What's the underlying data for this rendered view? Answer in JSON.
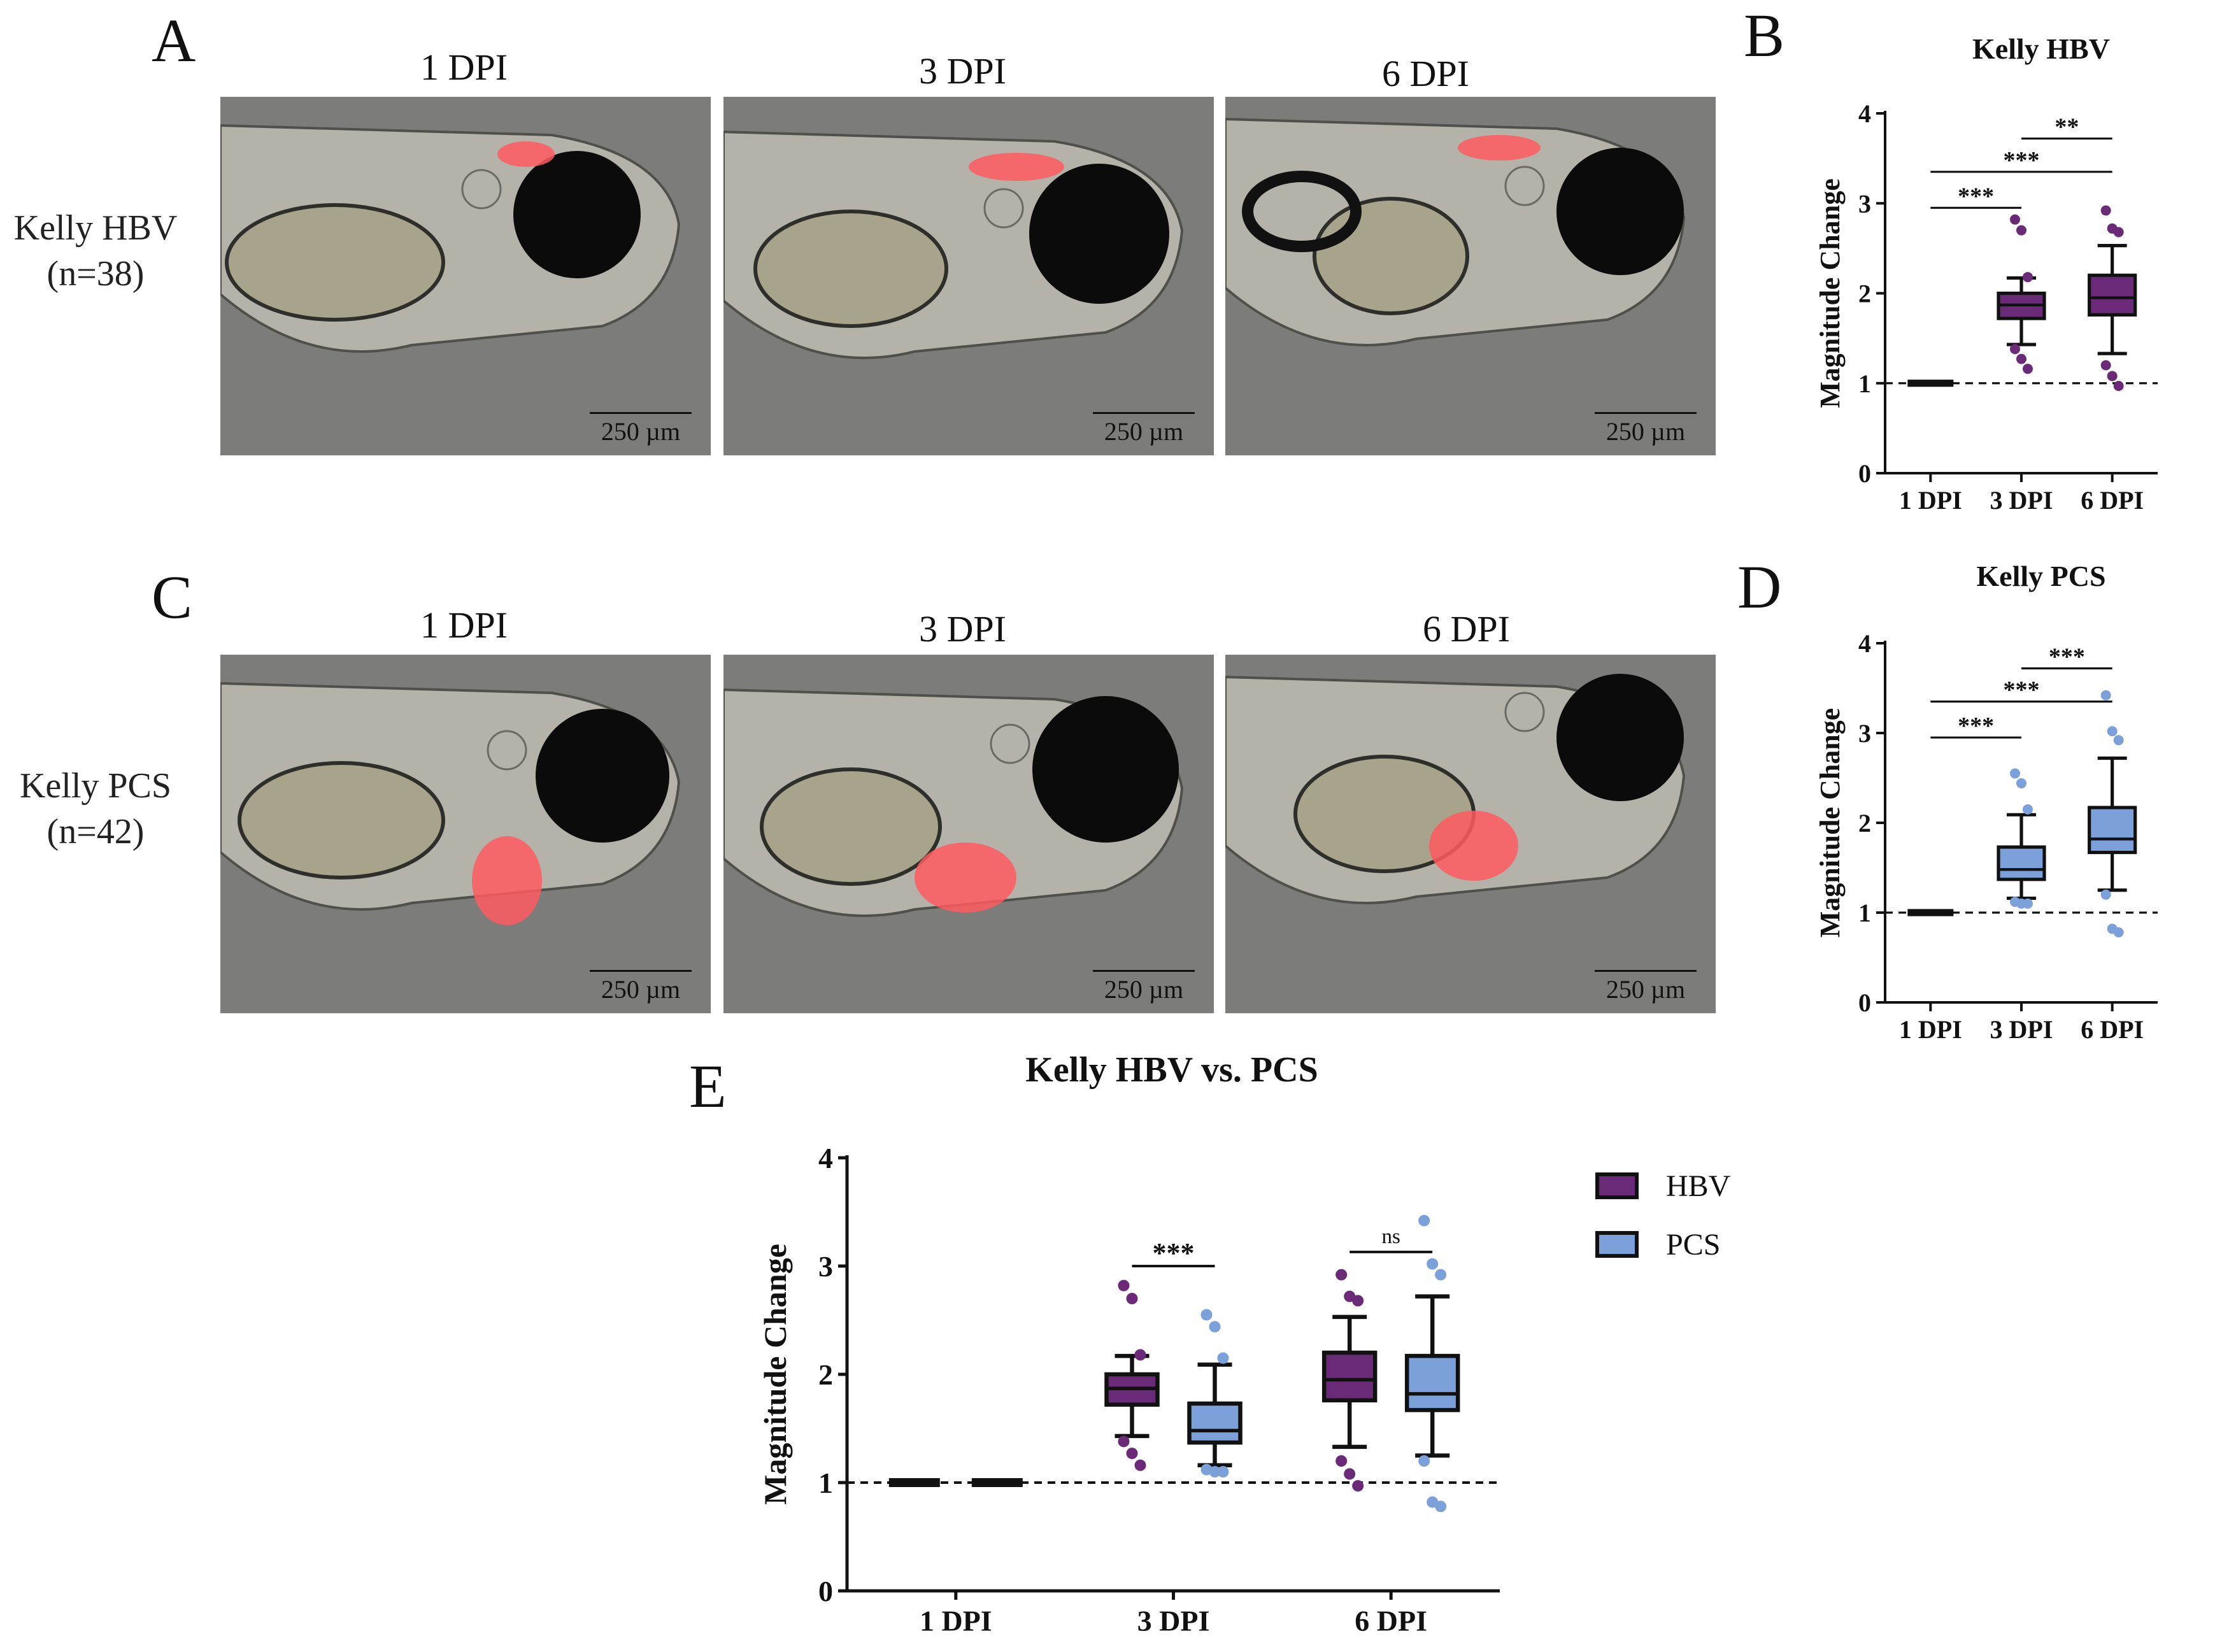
{
  "panels": {
    "A": {
      "letter": "A",
      "columns": [
        "1 DPI",
        "3 DPI",
        "6 DPI"
      ],
      "row_label": "Kelly HBV",
      "row_n": "(n=38)",
      "scale_label": "250 µm"
    },
    "C": {
      "letter": "C",
      "columns": [
        "1 DPI",
        "3 DPI",
        "6 DPI"
      ],
      "row_label": "Kelly PCS",
      "row_n": "(n=42)",
      "scale_label": "250 µm"
    },
    "B": {
      "letter": "B"
    },
    "D": {
      "letter": "D"
    },
    "E": {
      "letter": "E"
    }
  },
  "colors": {
    "hbv": "#6a2a78",
    "pcs": "#7ba0da",
    "tumor": "#ff5a60",
    "fish_body": "#b9b7ad",
    "eye": "#0b0b0b",
    "background": "#7c7d7b"
  },
  "chart_data": [
    {
      "id": "B",
      "type": "box",
      "title": "Kelly HBV",
      "xlabel": "",
      "ylabel": "Magnitude Change",
      "ylim": [
        0,
        4
      ],
      "yticks": [
        "0",
        "1",
        "2",
        "3",
        "4"
      ],
      "categories": [
        "1 DPI",
        "3 DPI",
        "6 DPI"
      ],
      "reference_line": 1,
      "grid": false,
      "series": [
        {
          "color": "#6a2a78",
          "boxes": [
            {
              "min": 1,
              "q1": 1,
              "median": 1,
              "q3": 1,
              "max": 1,
              "outliers": []
            },
            {
              "min": 1.43,
              "q1": 1.72,
              "median": 1.87,
              "q3": 2.0,
              "max": 2.17,
              "outliers": [
                2.82,
                2.7,
                2.18,
                1.38,
                1.27,
                1.16
              ]
            },
            {
              "min": 1.33,
              "q1": 1.76,
              "median": 1.95,
              "q3": 2.2,
              "max": 2.53,
              "outliers": [
                2.92,
                2.72,
                2.68,
                1.2,
                1.08,
                0.97
              ]
            }
          ]
        }
      ],
      "annotations": [
        {
          "from": 0,
          "to": 1,
          "label": "***",
          "y": 2.95
        },
        {
          "from": 0,
          "to": 2,
          "label": "***",
          "y": 3.35
        },
        {
          "from": 1,
          "to": 2,
          "label": "**",
          "y": 3.72
        }
      ]
    },
    {
      "id": "D",
      "type": "box",
      "title": "Kelly PCS",
      "xlabel": "",
      "ylabel": "Magnitude Change",
      "ylim": [
        0,
        4
      ],
      "yticks": [
        "0",
        "1",
        "2",
        "3",
        "4"
      ],
      "categories": [
        "1 DPI",
        "3 DPI",
        "6 DPI"
      ],
      "reference_line": 1,
      "grid": false,
      "series": [
        {
          "color": "#7ba0da",
          "boxes": [
            {
              "min": 1,
              "q1": 1,
              "median": 1,
              "q3": 1,
              "max": 1,
              "outliers": []
            },
            {
              "min": 1.16,
              "q1": 1.37,
              "median": 1.48,
              "q3": 1.73,
              "max": 2.09,
              "outliers": [
                2.55,
                2.44,
                2.15,
                1.12,
                1.1,
                1.1
              ]
            },
            {
              "min": 1.25,
              "q1": 1.67,
              "median": 1.82,
              "q3": 2.17,
              "max": 2.72,
              "outliers": [
                3.42,
                3.02,
                2.92,
                1.2,
                0.82,
                0.78
              ]
            }
          ]
        }
      ],
      "annotations": [
        {
          "from": 0,
          "to": 1,
          "label": "***",
          "y": 2.95
        },
        {
          "from": 0,
          "to": 2,
          "label": "***",
          "y": 3.35
        },
        {
          "from": 1,
          "to": 2,
          "label": "***",
          "y": 3.72
        }
      ]
    },
    {
      "id": "E",
      "type": "box",
      "title": "Kelly HBV vs. PCS",
      "xlabel": "",
      "ylabel": "Magnitude  Change",
      "ylim": [
        0,
        4
      ],
      "yticks": [
        "0",
        "1",
        "2",
        "3",
        "4"
      ],
      "categories": [
        "1 DPI",
        "3 DPI",
        "6 DPI"
      ],
      "reference_line": 1,
      "grid": false,
      "legend": "right",
      "series": [
        {
          "name": "HBV",
          "color": "#6a2a78",
          "boxes": [
            {
              "min": 1,
              "q1": 1,
              "median": 1,
              "q3": 1,
              "max": 1,
              "outliers": []
            },
            {
              "min": 1.43,
              "q1": 1.72,
              "median": 1.87,
              "q3": 2.0,
              "max": 2.17,
              "outliers": [
                2.82,
                2.7,
                2.18,
                1.38,
                1.27,
                1.16
              ]
            },
            {
              "min": 1.33,
              "q1": 1.76,
              "median": 1.95,
              "q3": 2.2,
              "max": 2.53,
              "outliers": [
                2.92,
                2.72,
                2.68,
                1.2,
                1.08,
                0.97
              ]
            }
          ]
        },
        {
          "name": "PCS",
          "color": "#7ba0da",
          "boxes": [
            {
              "min": 1,
              "q1": 1,
              "median": 1,
              "q3": 1,
              "max": 1,
              "outliers": []
            },
            {
              "min": 1.16,
              "q1": 1.37,
              "median": 1.48,
              "q3": 1.73,
              "max": 2.09,
              "outliers": [
                2.55,
                2.44,
                2.15,
                1.12,
                1.1,
                1.1
              ]
            },
            {
              "min": 1.25,
              "q1": 1.67,
              "median": 1.82,
              "q3": 2.17,
              "max": 2.72,
              "outliers": [
                3.42,
                3.02,
                2.92,
                1.2,
                0.82,
                0.78
              ]
            }
          ]
        }
      ],
      "annotations": [
        {
          "category": 1,
          "label": "***",
          "y": 3.0
        },
        {
          "category": 2,
          "label": "ns",
          "y": 3.13
        }
      ]
    }
  ]
}
